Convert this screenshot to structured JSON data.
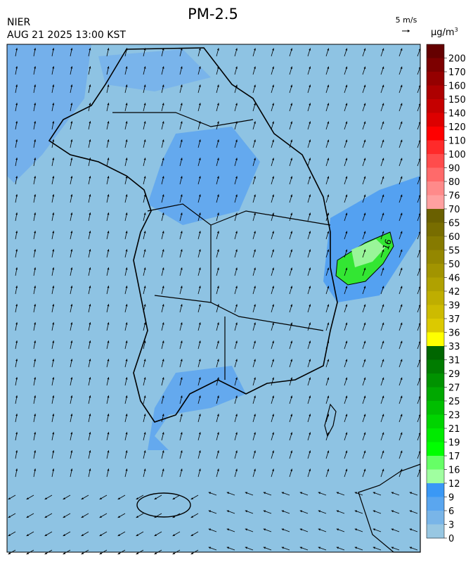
{
  "header": {
    "title": "PM-2.5",
    "agency": "NIER",
    "datetime": "AUG 21 2025 13:00 KST",
    "wind_scale": "5 m/s"
  },
  "map": {
    "contour_label": "16"
  },
  "colorbar": {
    "unit": "μg/m",
    "unit_sup": "3",
    "ticks": [
      200,
      170,
      160,
      150,
      140,
      120,
      110,
      100,
      90,
      80,
      76,
      70,
      65,
      60,
      55,
      50,
      46,
      42,
      39,
      37,
      36,
      33,
      31,
      29,
      27,
      25,
      23,
      21,
      19,
      17,
      16,
      12,
      9,
      6,
      3,
      0
    ],
    "colors": [
      "#650000",
      "#7d0000",
      "#950000",
      "#ad0000",
      "#c50000",
      "#dd0000",
      "#ff0000",
      "#ff2a2a",
      "#ff4c4c",
      "#ff6a6a",
      "#ff8a8a",
      "#ffa0a0",
      "#6a6000",
      "#786d00",
      "#867a00",
      "#948700",
      "#a29400",
      "#b0a100",
      "#bfae00",
      "#cdbb00",
      "#dcc900",
      "#ffff00",
      "#006600",
      "#007c00",
      "#009200",
      "#00a800",
      "#00be00",
      "#00d400",
      "#00ea00",
      "#00ff00",
      "#66ff66",
      "#a0ffa0",
      "#3a98f5",
      "#5aa6ef",
      "#79b5e8",
      "#98c7e2"
    ]
  }
}
